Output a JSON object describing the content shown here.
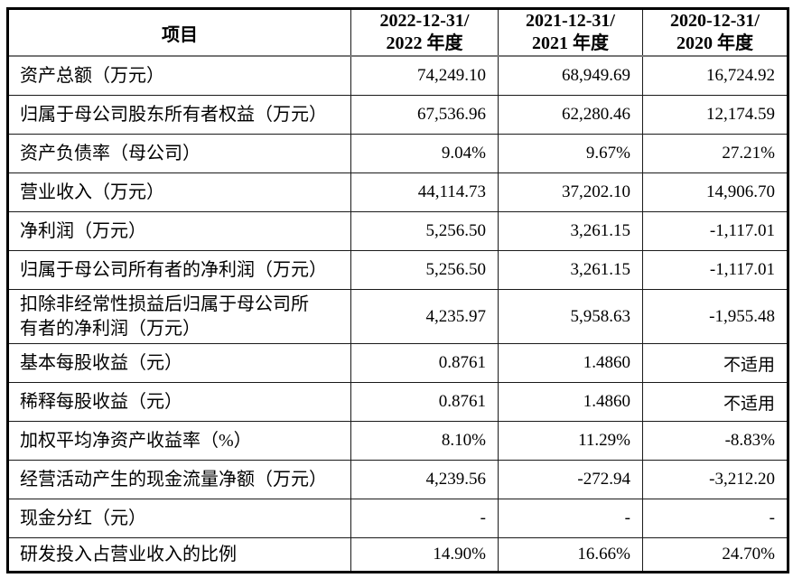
{
  "page": {
    "background_color": "#ffffff",
    "text_color": "#000000",
    "outer_border_color": "#000000",
    "grid_line_color": "#1a1a1a",
    "header_separator_color": "#777777"
  },
  "table": {
    "header": {
      "item_label": "项目",
      "periods": [
        {
          "line1": "2022-12-31/",
          "line2": "2022 年度"
        },
        {
          "line1": "2021-12-31/",
          "line2": "2021 年度"
        },
        {
          "line1": "2020-12-31/",
          "line2": "2020 年度"
        }
      ]
    },
    "rows": [
      {
        "label": "资产总额（万元）",
        "values": [
          "74,249.10",
          "68,949.69",
          "16,724.92"
        ]
      },
      {
        "label": "归属于母公司股东所有者权益（万元）",
        "values": [
          "67,536.96",
          "62,280.46",
          "12,174.59"
        ]
      },
      {
        "label": "资产负债率（母公司）",
        "values": [
          "9.04%",
          "9.67%",
          "27.21%"
        ]
      },
      {
        "label": "营业收入（万元）",
        "values": [
          "44,114.73",
          "37,202.10",
          "14,906.70"
        ]
      },
      {
        "label": "净利润（万元）",
        "values": [
          "5,256.50",
          "3,261.15",
          "-1,117.01"
        ]
      },
      {
        "label": "归属于母公司所有者的净利润（万元）",
        "values": [
          "5,256.50",
          "3,261.15",
          "-1,117.01"
        ]
      },
      {
        "label": "扣除非经常性损益后归属于母公司所\n有者的净利润（万元）",
        "values": [
          "4,235.97",
          "5,958.63",
          "-1,955.48"
        ]
      },
      {
        "label": "基本每股收益（元）",
        "values": [
          "0.8761",
          "1.4860",
          "不适用"
        ]
      },
      {
        "label": "稀释每股收益（元）",
        "values": [
          "0.8761",
          "1.4860",
          "不适用"
        ]
      },
      {
        "label": "加权平均净资产收益率（%）",
        "values": [
          "8.10%",
          "11.29%",
          "-8.83%"
        ]
      },
      {
        "label": "经营活动产生的现金流量净额（万元）",
        "values": [
          "4,239.56",
          "-272.94",
          "-3,212.20"
        ]
      },
      {
        "label": "现金分红（元）",
        "values": [
          "-",
          "-",
          "-"
        ]
      },
      {
        "label": "研发投入占营业收入的比例",
        "values": [
          "14.90%",
          "16.66%",
          "24.70%"
        ]
      }
    ]
  }
}
